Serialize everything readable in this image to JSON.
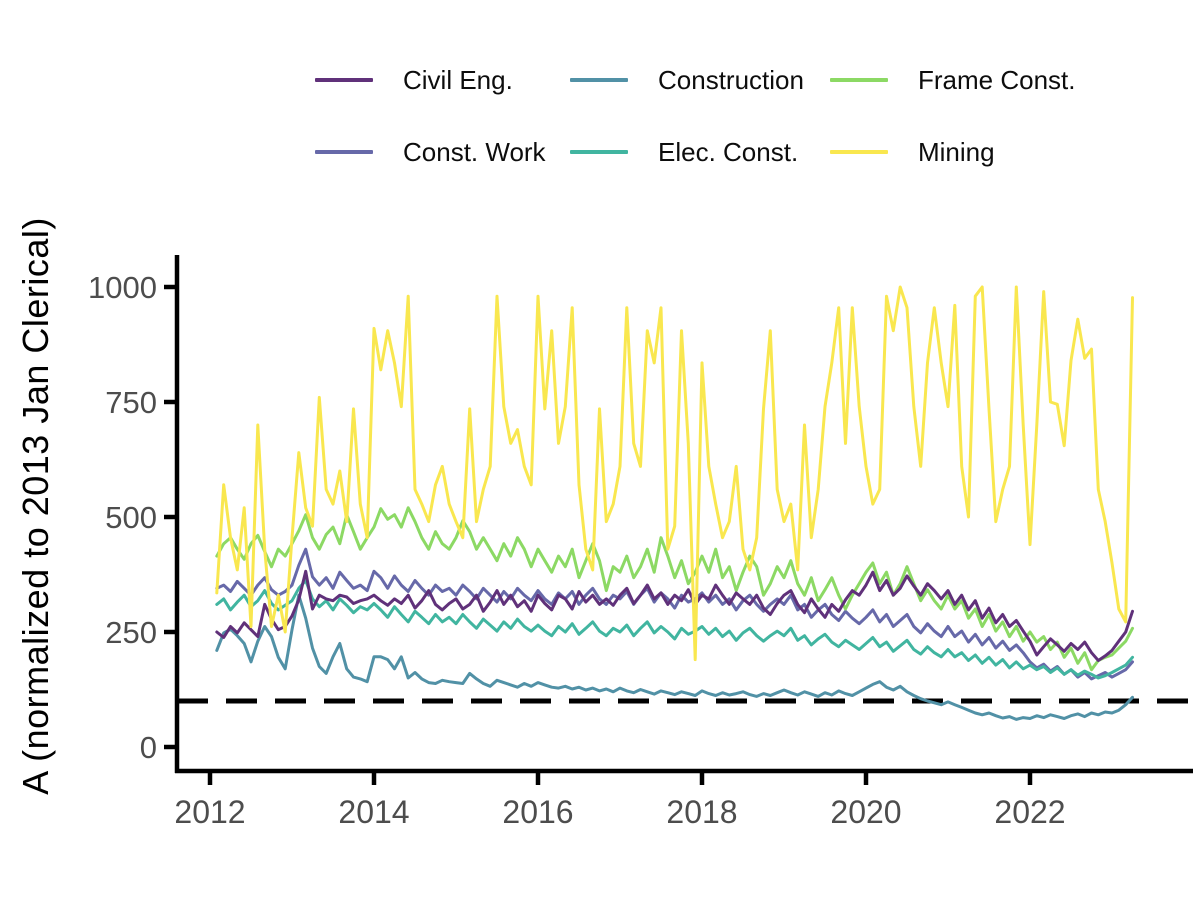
{
  "figure": {
    "y_axis_title": "A (normalized to 2013 Jan Clerical)",
    "background_color": "#ffffff",
    "axis_color": "#000000",
    "tick_label_color": "#4d4d4d",
    "reference_line_color": "#000000"
  },
  "legend": {
    "items": [
      {
        "label": "Civil Eng.",
        "color": "#60317a"
      },
      {
        "label": "Construction",
        "color": "#5191a6"
      },
      {
        "label": "Frame Const.",
        "color": "#8cd964"
      },
      {
        "label": "Const. Work",
        "color": "#6769a9"
      },
      {
        "label": "Elec. Const.",
        "color": "#41b5a0"
      },
      {
        "label": "Mining",
        "color": "#f9e74f"
      }
    ]
  },
  "chart_data": {
    "type": "line",
    "title": "",
    "xlabel": "",
    "ylabel": "A (normalized to 2013 Jan Clerical)",
    "x_start": 2012.0833,
    "x_step": 0.0833333,
    "x_ticks": [
      2012,
      2014,
      2016,
      2018,
      2020,
      2022
    ],
    "x_tick_labels": [
      "2012",
      "2014",
      "2016",
      "2018",
      "2020",
      "2022"
    ],
    "y_ticks": [
      0,
      250,
      500,
      750,
      1000
    ],
    "y_tick_labels": [
      "0",
      "250",
      "500",
      "750",
      "1000"
    ],
    "ylim": [
      0,
      1000
    ],
    "xlim": [
      2011.6,
      2023.6
    ],
    "grid": false,
    "legend_position": "top",
    "hline": {
      "value": 100,
      "style": "dashed",
      "color": "#000000"
    },
    "draw_order": [
      "Construction",
      "Const. Work",
      "Elec. Const.",
      "Frame Const.",
      "Civil Eng.",
      "Mining"
    ],
    "series": [
      {
        "name": "Civil Eng.",
        "color": "#60317a",
        "values": [
          250,
          238,
          262,
          248,
          270,
          255,
          240,
          310,
          278,
          255,
          262,
          285,
          320,
          382,
          300,
          330,
          322,
          318,
          330,
          326,
          312,
          318,
          322,
          330,
          318,
          308,
          322,
          312,
          330,
          302,
          318,
          340,
          310,
          298,
          312,
          322,
          300,
          310,
          330,
          295,
          315,
          340,
          310,
          330,
          305,
          318,
          295,
          330,
          312,
          298,
          330,
          322,
          300,
          338,
          315,
          330,
          310,
          322,
          308,
          330,
          345,
          312,
          330,
          352,
          322,
          335,
          310,
          330,
          318,
          342,
          310,
          330,
          322,
          352,
          330,
          310,
          335,
          322,
          310,
          330,
          302,
          288,
          312,
          330,
          340,
          310,
          292,
          322,
          300,
          282,
          310,
          295,
          320,
          340,
          330,
          352,
          380,
          340,
          362,
          330,
          345,
          372,
          350,
          330,
          355,
          340,
          322,
          340,
          310,
          330,
          298,
          318,
          280,
          302,
          270,
          288,
          262,
          275,
          252,
          230,
          200,
          218,
          235,
          222,
          208,
          225,
          212,
          228,
          205,
          188,
          198,
          210,
          230,
          250,
          295
        ]
      },
      {
        "name": "Const. Work",
        "color": "#6769a9",
        "values": [
          345,
          352,
          338,
          360,
          345,
          330,
          352,
          368,
          342,
          330,
          338,
          352,
          395,
          430,
          370,
          352,
          368,
          345,
          380,
          362,
          345,
          352,
          340,
          382,
          368,
          345,
          372,
          352,
          338,
          362,
          345,
          330,
          352,
          338,
          345,
          330,
          352,
          338,
          322,
          345,
          330,
          315,
          338,
          322,
          345,
          330,
          318,
          340,
          322,
          310,
          335,
          322,
          338,
          310,
          330,
          345,
          322,
          310,
          330,
          322,
          338,
          310,
          330,
          345,
          315,
          335,
          322,
          302,
          330,
          315,
          322,
          335,
          315,
          330,
          310,
          322,
          298,
          318,
          330,
          310,
          295,
          310,
          322,
          310,
          330,
          298,
          310,
          282,
          298,
          310,
          288,
          275,
          295,
          280,
          268,
          282,
          298,
          272,
          288,
          262,
          275,
          288,
          262,
          248,
          268,
          252,
          240,
          262,
          240,
          252,
          228,
          245,
          222,
          238,
          215,
          230,
          210,
          222,
          205,
          185,
          172,
          180,
          165,
          175,
          158,
          168,
          152,
          162,
          148,
          155,
          162,
          152,
          160,
          168,
          185
        ]
      },
      {
        "name": "Construction",
        "color": "#5191a6",
        "values": [
          210,
          248,
          256,
          242,
          225,
          185,
          230,
          262,
          240,
          195,
          170,
          255,
          330,
          280,
          215,
          175,
          160,
          196,
          225,
          170,
          152,
          148,
          142,
          196,
          196,
          190,
          170,
          196,
          150,
          162,
          148,
          140,
          138,
          145,
          142,
          140,
          138,
          160,
          148,
          138,
          132,
          145,
          140,
          135,
          130,
          138,
          132,
          140,
          135,
          130,
          128,
          132,
          126,
          130,
          124,
          128,
          122,
          126,
          120,
          128,
          122,
          118,
          125,
          120,
          115,
          122,
          118,
          114,
          120,
          116,
          112,
          122,
          116,
          112,
          118,
          113,
          116,
          120,
          114,
          110,
          116,
          112,
          118,
          124,
          118,
          113,
          120,
          115,
          110,
          118,
          113,
          122,
          116,
          112,
          120,
          128,
          136,
          142,
          130,
          124,
          132,
          120,
          112,
          105,
          100,
          96,
          92,
          98,
          92,
          86,
          80,
          74,
          70,
          74,
          68,
          63,
          66,
          60,
          64,
          62,
          68,
          64,
          70,
          66,
          62,
          68,
          72,
          66,
          74,
          70,
          76,
          74,
          80,
          92,
          108
        ]
      },
      {
        "name": "Elec. Const.",
        "color": "#41b5a0",
        "values": [
          310,
          322,
          298,
          315,
          330,
          305,
          318,
          340,
          312,
          298,
          308,
          318,
          345,
          362,
          322,
          305,
          318,
          298,
          322,
          308,
          292,
          305,
          298,
          312,
          298,
          282,
          305,
          288,
          272,
          295,
          282,
          268,
          288,
          272,
          282,
          268,
          288,
          272,
          258,
          278,
          265,
          252,
          272,
          258,
          278,
          262,
          252,
          265,
          252,
          242,
          262,
          250,
          268,
          245,
          258,
          272,
          252,
          242,
          258,
          250,
          265,
          242,
          258,
          272,
          248,
          262,
          250,
          235,
          258,
          245,
          252,
          262,
          245,
          258,
          240,
          252,
          232,
          248,
          258,
          242,
          230,
          242,
          252,
          242,
          258,
          232,
          242,
          222,
          235,
          245,
          228,
          218,
          232,
          222,
          212,
          225,
          238,
          218,
          228,
          208,
          220,
          232,
          212,
          202,
          218,
          205,
          196,
          212,
          196,
          205,
          188,
          200,
          182,
          195,
          178,
          190,
          172,
          185,
          170,
          178,
          168,
          175,
          162,
          172,
          158,
          168,
          156,
          165,
          158,
          150,
          155,
          162,
          170,
          178,
          195
        ]
      },
      {
        "name": "Frame Const.",
        "color": "#8cd964",
        "values": [
          415,
          442,
          455,
          430,
          408,
          442,
          460,
          425,
          392,
          430,
          415,
          442,
          470,
          505,
          455,
          430,
          462,
          478,
          442,
          505,
          468,
          430,
          455,
          478,
          518,
          495,
          505,
          478,
          520,
          490,
          455,
          430,
          468,
          442,
          430,
          455,
          492,
          468,
          430,
          455,
          430,
          405,
          442,
          415,
          455,
          430,
          392,
          430,
          405,
          380,
          415,
          392,
          430,
          368,
          405,
          442,
          405,
          340,
          392,
          380,
          415,
          368,
          392,
          430,
          380,
          455,
          415,
          368,
          405,
          355,
          380,
          415,
          380,
          430,
          368,
          392,
          340,
          380,
          415,
          392,
          330,
          355,
          392,
          368,
          405,
          355,
          330,
          368,
          318,
          342,
          368,
          330,
          300,
          330,
          355,
          380,
          400,
          355,
          380,
          330,
          355,
          392,
          355,
          318,
          342,
          318,
          300,
          330,
          300,
          318,
          280,
          300,
          262,
          288,
          252,
          272,
          240,
          262,
          230,
          250,
          228,
          240,
          212,
          228,
          195,
          215,
          182,
          205,
          168,
          188,
          195,
          200,
          215,
          230,
          258
        ]
      },
      {
        "name": "Mining",
        "color": "#f9e74f",
        "values": [
          335,
          570,
          455,
          385,
          520,
          262,
          700,
          430,
          262,
          330,
          250,
          455,
          640,
          520,
          480,
          760,
          560,
          528,
          600,
          490,
          735,
          528,
          455,
          910,
          820,
          905,
          835,
          740,
          980,
          560,
          528,
          490,
          570,
          610,
          528,
          490,
          455,
          735,
          490,
          560,
          610,
          980,
          740,
          660,
          690,
          610,
          570,
          980,
          735,
          905,
          660,
          740,
          955,
          570,
          430,
          385,
          735,
          490,
          528,
          610,
          955,
          660,
          610,
          905,
          835,
          955,
          430,
          480,
          905,
          660,
          190,
          835,
          610,
          528,
          455,
          490,
          610,
          430,
          385,
          455,
          735,
          905,
          560,
          490,
          528,
          385,
          700,
          455,
          560,
          740,
          835,
          955,
          660,
          955,
          740,
          610,
          528,
          560,
          980,
          905,
          1000,
          955,
          740,
          610,
          835,
          955,
          835,
          740,
          960,
          610,
          500,
          980,
          1000,
          735,
          490,
          560,
          610,
          1000,
          700,
          440,
          700,
          990,
          750,
          745,
          655,
          840,
          930,
          845,
          865,
          560,
          490,
          400,
          300,
          272,
          977
        ]
      }
    ]
  }
}
